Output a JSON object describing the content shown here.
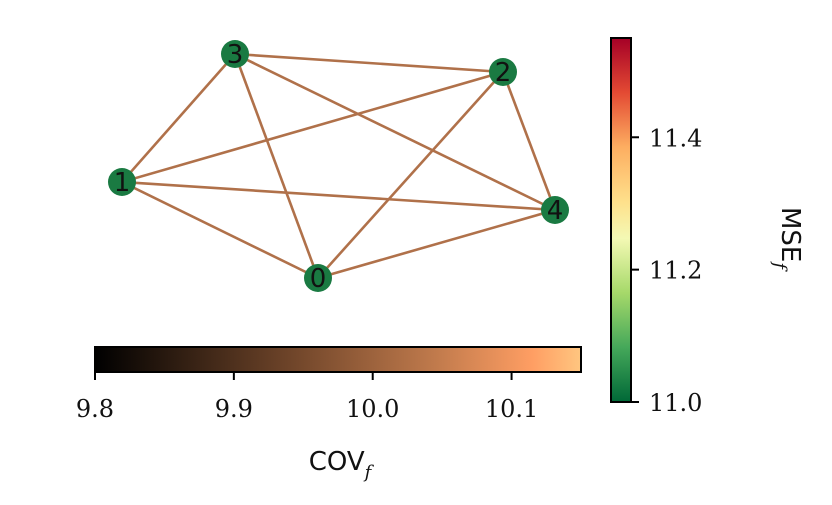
{
  "graph": {
    "nodes": [
      {
        "id": "0",
        "label": "0"
      },
      {
        "id": "1",
        "label": "1"
      },
      {
        "id": "2",
        "label": "2"
      },
      {
        "id": "3",
        "label": "3"
      },
      {
        "id": "4",
        "label": "4"
      }
    ],
    "edges": [
      [
        "0",
        "1"
      ],
      [
        "0",
        "3"
      ],
      [
        "0",
        "2"
      ],
      [
        "0",
        "4"
      ],
      [
        "1",
        "3"
      ],
      [
        "1",
        "2"
      ],
      [
        "1",
        "4"
      ],
      [
        "3",
        "2"
      ],
      [
        "3",
        "4"
      ],
      [
        "2",
        "4"
      ]
    ],
    "node_color": "#1a7a42",
    "edge_color": "#b0714a"
  },
  "colorbar_cov": {
    "title": "COV",
    "title_sub": "f",
    "ticks": [
      "9.8",
      "9.9",
      "10.0",
      "10.1"
    ],
    "tick_values": [
      9.8,
      9.9,
      10.0,
      10.1
    ],
    "range": [
      9.8,
      10.15
    ],
    "colormap": "copper"
  },
  "colorbar_mse": {
    "title": "MSE",
    "title_sub": "f",
    "ticks": [
      "11.0",
      "11.2",
      "11.4"
    ],
    "tick_values": [
      11.0,
      11.2,
      11.4
    ],
    "range": [
      11.0,
      11.55
    ],
    "colormap": "RdYlGn_r"
  }
}
